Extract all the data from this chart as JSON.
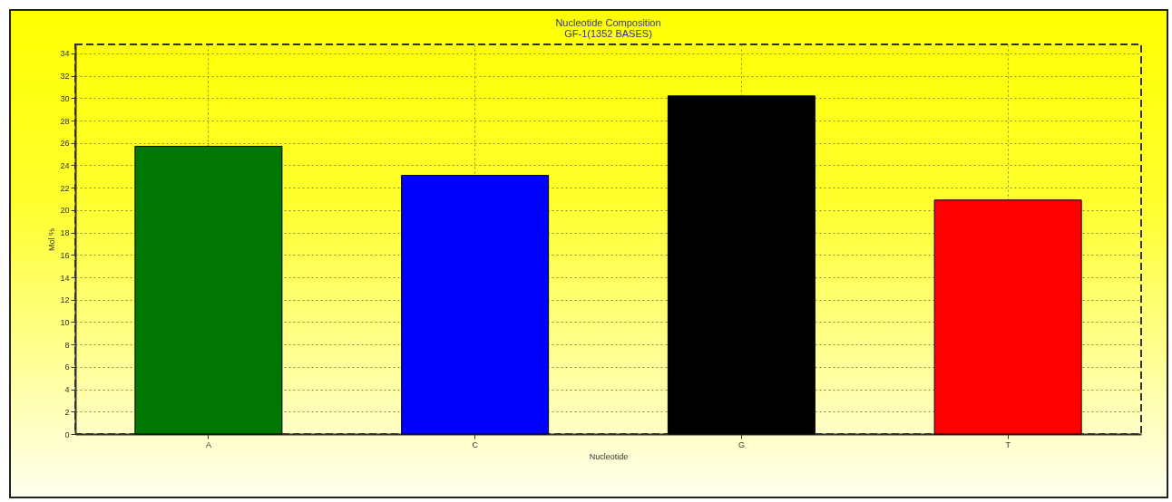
{
  "chart_data": {
    "type": "bar",
    "title": "Nucleotide Composition",
    "subtitle": "GF-1(1352 BASES)",
    "xlabel": "Nucleotide",
    "ylabel": "Mol %",
    "categories": [
      "A",
      "C",
      "G",
      "T"
    ],
    "values": [
      25.7,
      23.1,
      30.2,
      20.9
    ],
    "colors": [
      "#007700",
      "#0000ff",
      "#000000",
      "#ff0000"
    ],
    "ylim": [
      0,
      34.8
    ],
    "yticks": [
      0,
      2,
      4,
      6,
      8,
      10,
      12,
      14,
      16,
      18,
      20,
      22,
      24,
      26,
      28,
      30,
      32,
      34
    ],
    "grid": true
  }
}
